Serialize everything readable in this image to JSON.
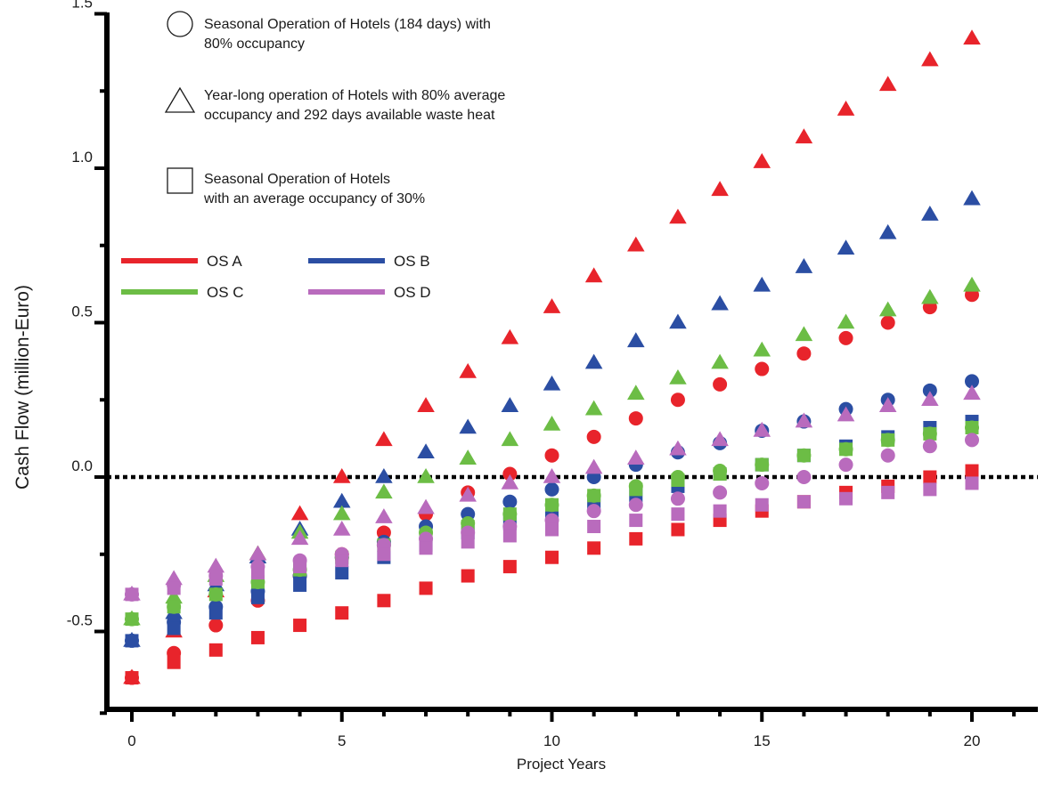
{
  "chart_data": {
    "type": "scatter",
    "title": "",
    "xlabel": "Project Years",
    "ylabel": "Cash Flow (million-Euro)",
    "xlim": [
      -0.6,
      21.6
    ],
    "ylim": [
      -0.75,
      1.55
    ],
    "x_ticks": [
      0,
      5,
      10,
      15,
      20
    ],
    "x_tick_labels": [
      "0",
      "5",
      "10",
      "15",
      "20"
    ],
    "y_ticks": [
      -0.5,
      0.0,
      0.5,
      1.0,
      1.5
    ],
    "y_tick_labels": [
      "-0.5",
      "0.0",
      "0.5",
      "1.0",
      "1.5"
    ],
    "reference_line": {
      "y": 0.0,
      "style": "dotted"
    },
    "grid": false,
    "marker_legend": [
      {
        "marker": "circle",
        "lines": [
          "Seasonal Operation of Hotels (184 days) with",
          "80% occupancy"
        ]
      },
      {
        "marker": "triangle",
        "lines": [
          "Year-long operation of Hotels with 80% average",
          "occupancy and 292 days available waste heat"
        ]
      },
      {
        "marker": "square",
        "lines": [
          "Seasonal Operation of Hotels",
          "with an average occupancy of 30%"
        ]
      }
    ],
    "series_legend": [
      {
        "name": "OS A",
        "color": "#e8242b"
      },
      {
        "name": "OS B",
        "color": "#2b4ea3"
      },
      {
        "name": "OS C",
        "color": "#6cbd45"
      },
      {
        "name": "OS D",
        "color": "#b96bbd"
      }
    ],
    "x": [
      0,
      1,
      2,
      3,
      4,
      5,
      6,
      7,
      8,
      9,
      10,
      11,
      12,
      13,
      14,
      15,
      16,
      17,
      18,
      19,
      20
    ],
    "series": [
      {
        "name": "OS A",
        "marker": "triangle",
        "color": "#e8242b",
        "values": [
          -0.65,
          -0.5,
          -0.37,
          -0.25,
          -0.12,
          0.0,
          0.12,
          0.23,
          0.34,
          0.45,
          0.55,
          0.65,
          0.75,
          0.84,
          0.93,
          1.02,
          1.1,
          1.19,
          1.27,
          1.35,
          1.42
        ]
      },
      {
        "name": "OS A",
        "marker": "circle",
        "color": "#e8242b",
        "values": [
          -0.65,
          -0.57,
          -0.48,
          -0.4,
          -0.32,
          -0.25,
          -0.18,
          -0.12,
          -0.05,
          0.01,
          0.07,
          0.13,
          0.19,
          0.25,
          0.3,
          0.35,
          0.4,
          0.45,
          0.5,
          0.55,
          0.59
        ]
      },
      {
        "name": "OS A",
        "marker": "square",
        "color": "#e8242b",
        "values": [
          -0.65,
          -0.6,
          -0.56,
          -0.52,
          -0.48,
          -0.44,
          -0.4,
          -0.36,
          -0.32,
          -0.29,
          -0.26,
          -0.23,
          -0.2,
          -0.17,
          -0.14,
          -0.11,
          -0.08,
          -0.05,
          -0.03,
          0.0,
          0.02
        ]
      },
      {
        "name": "OS B",
        "marker": "triangle",
        "color": "#2b4ea3",
        "values": [
          -0.53,
          -0.44,
          -0.35,
          -0.26,
          -0.17,
          -0.08,
          0.0,
          0.08,
          0.16,
          0.23,
          0.3,
          0.37,
          0.44,
          0.5,
          0.56,
          0.62,
          0.68,
          0.74,
          0.79,
          0.85,
          0.9
        ]
      },
      {
        "name": "OS B",
        "marker": "circle",
        "color": "#2b4ea3",
        "values": [
          -0.53,
          -0.47,
          -0.42,
          -0.37,
          -0.32,
          -0.26,
          -0.21,
          -0.16,
          -0.12,
          -0.08,
          -0.04,
          0.0,
          0.04,
          0.08,
          0.11,
          0.15,
          0.18,
          0.22,
          0.25,
          0.28,
          0.31
        ]
      },
      {
        "name": "OS B",
        "marker": "square",
        "color": "#2b4ea3",
        "values": [
          -0.53,
          -0.49,
          -0.44,
          -0.39,
          -0.35,
          -0.31,
          -0.26,
          -0.22,
          -0.18,
          -0.15,
          -0.12,
          -0.09,
          -0.06,
          -0.03,
          0.01,
          0.04,
          0.07,
          0.1,
          0.13,
          0.16,
          0.18
        ]
      },
      {
        "name": "OS C",
        "marker": "triangle",
        "color": "#6cbd45",
        "values": [
          -0.46,
          -0.39,
          -0.32,
          -0.25,
          -0.18,
          -0.12,
          -0.05,
          0.0,
          0.06,
          0.12,
          0.17,
          0.22,
          0.27,
          0.32,
          0.37,
          0.41,
          0.46,
          0.5,
          0.54,
          0.58,
          0.62
        ]
      },
      {
        "name": "OS C",
        "marker": "circle",
        "color": "#6cbd45",
        "values": [
          -0.46,
          -0.42,
          -0.38,
          -0.34,
          -0.3,
          -0.26,
          -0.22,
          -0.18,
          -0.15,
          -0.12,
          -0.09,
          -0.06,
          -0.03,
          0.0,
          0.02,
          0.04,
          0.07,
          0.09,
          0.12,
          0.14,
          0.16
        ]
      },
      {
        "name": "OS C",
        "marker": "square",
        "color": "#6cbd45",
        "values": [
          -0.46,
          -0.42,
          -0.38,
          -0.34,
          -0.3,
          -0.26,
          -0.22,
          -0.19,
          -0.16,
          -0.12,
          -0.09,
          -0.06,
          -0.04,
          -0.01,
          0.01,
          0.04,
          0.07,
          0.09,
          0.12,
          0.14,
          0.16
        ]
      },
      {
        "name": "OS D",
        "marker": "triangle",
        "color": "#b96bbd",
        "values": [
          -0.38,
          -0.33,
          -0.29,
          -0.25,
          -0.2,
          -0.17,
          -0.13,
          -0.1,
          -0.06,
          -0.02,
          0.0,
          0.03,
          0.06,
          0.09,
          0.12,
          0.15,
          0.18,
          0.2,
          0.23,
          0.25,
          0.27
        ]
      },
      {
        "name": "OS D",
        "marker": "circle",
        "color": "#b96bbd",
        "values": [
          -0.38,
          -0.35,
          -0.32,
          -0.29,
          -0.27,
          -0.25,
          -0.22,
          -0.2,
          -0.18,
          -0.16,
          -0.14,
          -0.11,
          -0.09,
          -0.07,
          -0.05,
          -0.02,
          0.0,
          0.04,
          0.07,
          0.1,
          0.12
        ]
      },
      {
        "name": "OS D",
        "marker": "square",
        "color": "#b96bbd",
        "values": [
          -0.38,
          -0.36,
          -0.33,
          -0.31,
          -0.29,
          -0.27,
          -0.25,
          -0.23,
          -0.21,
          -0.19,
          -0.17,
          -0.16,
          -0.14,
          -0.12,
          -0.11,
          -0.09,
          -0.08,
          -0.07,
          -0.05,
          -0.04,
          -0.02
        ]
      }
    ]
  }
}
